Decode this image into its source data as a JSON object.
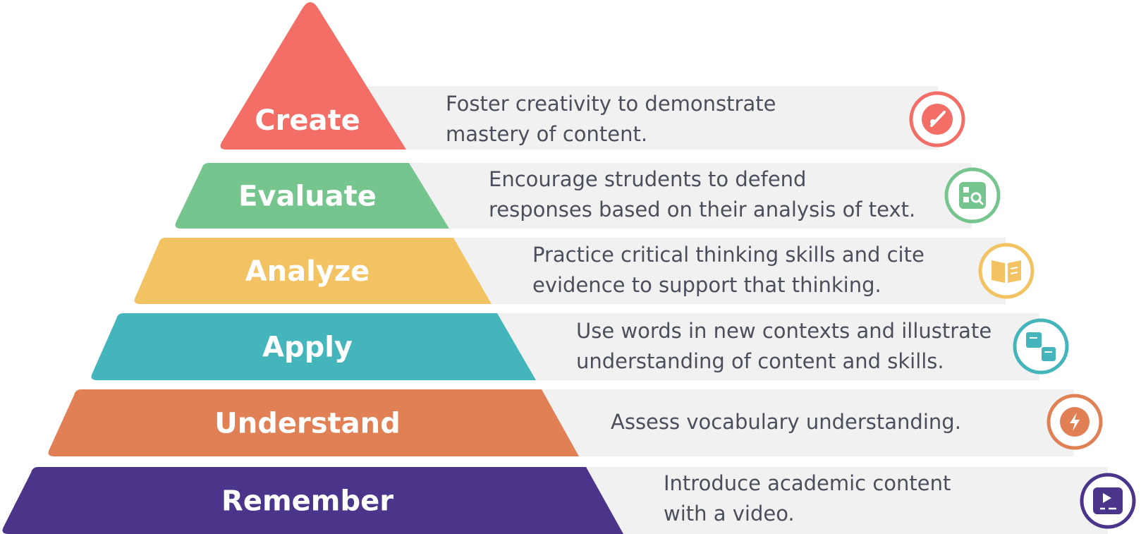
{
  "pyramid": {
    "levels": [
      {
        "label": "Create",
        "description": [
          "Foster creativity to demonstrate",
          "mastery of content."
        ],
        "color": "#f26e66",
        "icon": "pencil-icon"
      },
      {
        "label": "Evaluate",
        "description": [
          "Encourage strudents to defend",
          "responses based on their analysis of text."
        ],
        "color": "#76c58f",
        "icon": "magnifier-icon"
      },
      {
        "label": "Analyze",
        "description": [
          "Practice critical thinking skills and cite",
          "evidence to support that thinking."
        ],
        "color": "#f3c363",
        "icon": "open-book-icon"
      },
      {
        "label": "Apply",
        "description": [
          "Use words in new contexts and illustrate",
          "understanding of content and skills."
        ],
        "color": "#44b5bb",
        "icon": "cards-icon"
      },
      {
        "label": "Understand",
        "description": [
          "Assess vocabulary understanding."
        ],
        "color": "#e17f55",
        "icon": "lightning-icon"
      },
      {
        "label": "Remember",
        "description": [
          "Introduce academic content",
          "with a video."
        ],
        "color": "#4a358b",
        "icon": "video-play-icon"
      }
    ],
    "band_color": "#f1f1f1",
    "text_color": "#4b4f5c"
  }
}
